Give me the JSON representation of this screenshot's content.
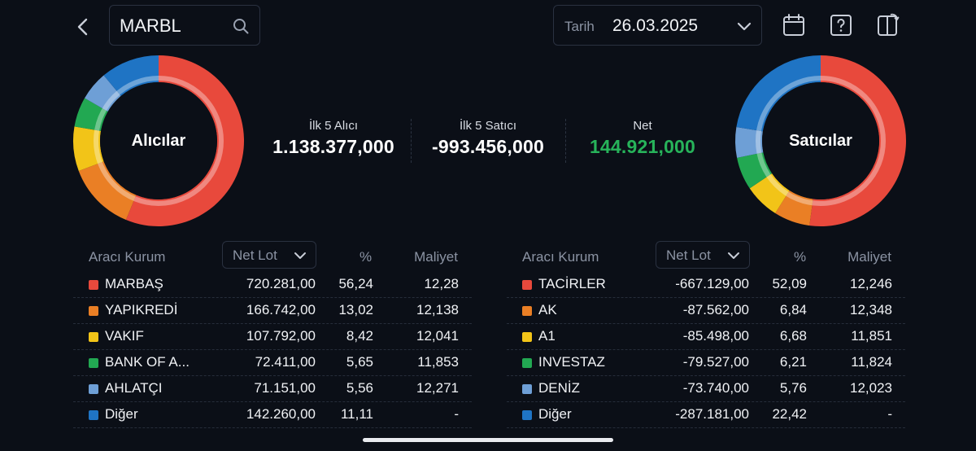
{
  "header": {
    "symbol": "MARBL",
    "date_label": "Tarih",
    "date_value": "26.03.2025"
  },
  "buyers": {
    "title": "Alıcılar",
    "slices": [
      {
        "name": "MARBAŞ",
        "pct": 56.24,
        "color": "#e8493c"
      },
      {
        "name": "YAPIKREDİ",
        "pct": 13.02,
        "color": "#ea7f25"
      },
      {
        "name": "VAKIF",
        "pct": 8.42,
        "color": "#f2c418"
      },
      {
        "name": "BANK OF A...",
        "pct": 5.65,
        "color": "#22a852"
      },
      {
        "name": "AHLATÇI",
        "pct": 5.56,
        "color": "#6e9fd6"
      },
      {
        "name": "Diğer",
        "pct": 11.11,
        "color": "#1f74c4"
      }
    ]
  },
  "sellers": {
    "title": "Satıcılar",
    "slices": [
      {
        "name": "TACİRLER",
        "pct": 52.09,
        "color": "#e8493c"
      },
      {
        "name": "AK",
        "pct": 6.84,
        "color": "#ea7f25"
      },
      {
        "name": "A1",
        "pct": 6.68,
        "color": "#f2c418"
      },
      {
        "name": "INVESTAZ",
        "pct": 6.21,
        "color": "#22a852"
      },
      {
        "name": "DENİZ",
        "pct": 5.76,
        "color": "#6e9fd6"
      },
      {
        "name": "Diğer",
        "pct": 22.42,
        "color": "#1f74c4"
      }
    ]
  },
  "summary": {
    "top5_buyers_label": "İlk 5 Alıcı",
    "top5_buyers_value": "1.138.377,000",
    "top5_sellers_label": "İlk 5 Satıcı",
    "top5_sellers_value": "-993.456,000",
    "net_label": "Net",
    "net_value": "144.921,000",
    "net_color": "#27b35a"
  },
  "table_headers": {
    "broker": "Aracı Kurum",
    "net_lot": "Net Lot",
    "pct": "%",
    "cost": "Maliyet"
  },
  "buyers_table": [
    {
      "name": "MARBAŞ",
      "net_lot": "720.281,00",
      "pct": "56,24",
      "cost": "12,28",
      "color": "#e8493c"
    },
    {
      "name": "YAPIKREDİ",
      "net_lot": "166.742,00",
      "pct": "13,02",
      "cost": "12,138",
      "color": "#ea7f25"
    },
    {
      "name": "VAKIF",
      "net_lot": "107.792,00",
      "pct": "8,42",
      "cost": "12,041",
      "color": "#f2c418"
    },
    {
      "name": "BANK OF A...",
      "net_lot": "72.411,00",
      "pct": "5,65",
      "cost": "11,853",
      "color": "#22a852"
    },
    {
      "name": "AHLATÇI",
      "net_lot": "71.151,00",
      "pct": "5,56",
      "cost": "12,271",
      "color": "#6e9fd6"
    },
    {
      "name": "Diğer",
      "net_lot": "142.260,00",
      "pct": "11,11",
      "cost": "-",
      "color": "#1f74c4"
    }
  ],
  "sellers_table": [
    {
      "name": "TACİRLER",
      "net_lot": "-667.129,00",
      "pct": "52,09",
      "cost": "12,246",
      "color": "#e8493c"
    },
    {
      "name": "AK",
      "net_lot": "-87.562,00",
      "pct": "6,84",
      "cost": "12,348",
      "color": "#ea7f25"
    },
    {
      "name": "A1",
      "net_lot": "-85.498,00",
      "pct": "6,68",
      "cost": "11,851",
      "color": "#f2c418"
    },
    {
      "name": "INVESTAZ",
      "net_lot": "-79.527,00",
      "pct": "6,21",
      "cost": "11,824",
      "color": "#22a852"
    },
    {
      "name": "DENİZ",
      "net_lot": "-73.740,00",
      "pct": "5,76",
      "cost": "12,023",
      "color": "#6e9fd6"
    },
    {
      "name": "Diğer",
      "net_lot": "-287.181,00",
      "pct": "22,42",
      "cost": "-",
      "color": "#1f74c4"
    }
  ],
  "icons": [
    "back-chevron-icon",
    "search-icon",
    "chevron-down-icon",
    "calendar-icon",
    "help-icon",
    "layout-toggle-icon"
  ]
}
